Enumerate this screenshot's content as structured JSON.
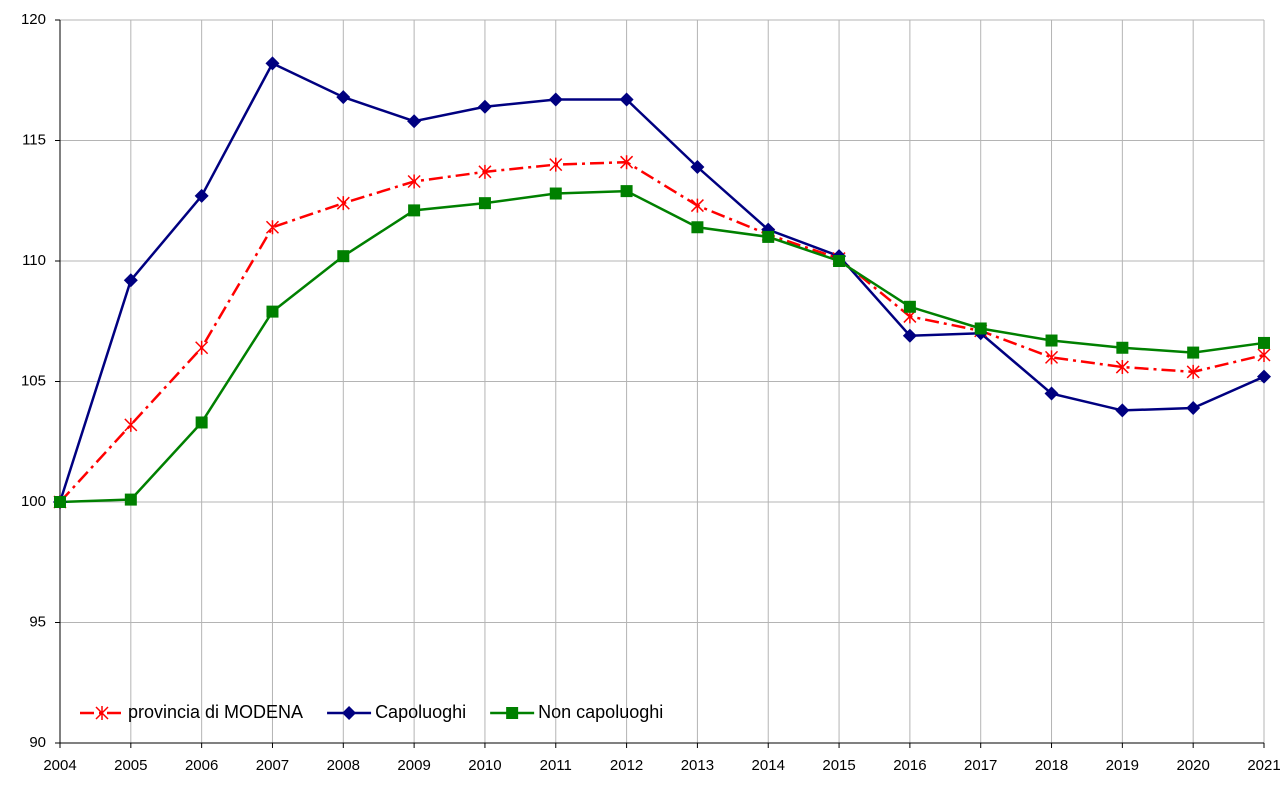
{
  "chart_data": {
    "type": "line",
    "x": [
      2004,
      2005,
      2006,
      2007,
      2008,
      2009,
      2010,
      2011,
      2012,
      2013,
      2014,
      2015,
      2016,
      2017,
      2018,
      2019,
      2020,
      2021
    ],
    "xlim": [
      2004,
      2021
    ],
    "xticks": [
      2004,
      2005,
      2006,
      2007,
      2008,
      2009,
      2010,
      2011,
      2012,
      2013,
      2014,
      2015,
      2016,
      2017,
      2018,
      2019,
      2020,
      2021
    ],
    "ylim": [
      90,
      120
    ],
    "yticks": [
      90,
      95,
      100,
      105,
      110,
      115,
      120
    ],
    "grid": true,
    "legend": "bottom-left",
    "series": [
      {
        "name": "provincia di MODENA",
        "color": "#ff0000",
        "dash": "dashdot",
        "marker": "star",
        "values": [
          100,
          103.2,
          106.4,
          111.4,
          112.4,
          113.3,
          113.7,
          114.0,
          114.1,
          112.3,
          111.1,
          110.1,
          107.7,
          107.1,
          106.0,
          105.6,
          105.4,
          106.1
        ]
      },
      {
        "name": "Capoluoghi",
        "color": "#000080",
        "dash": "solid",
        "marker": "diamond",
        "values": [
          100,
          109.2,
          112.7,
          118.2,
          116.8,
          115.8,
          116.4,
          116.7,
          116.7,
          113.9,
          111.3,
          110.2,
          106.9,
          107.0,
          104.5,
          103.8,
          103.9,
          105.2
        ]
      },
      {
        "name": "Non capoluoghi",
        "color": "#008000",
        "dash": "solid",
        "marker": "square",
        "values": [
          100,
          100.1,
          103.3,
          107.9,
          110.2,
          112.1,
          112.4,
          112.8,
          112.9,
          111.4,
          111.0,
          110.0,
          108.1,
          107.2,
          106.7,
          106.4,
          106.2,
          106.6
        ]
      }
    ]
  }
}
